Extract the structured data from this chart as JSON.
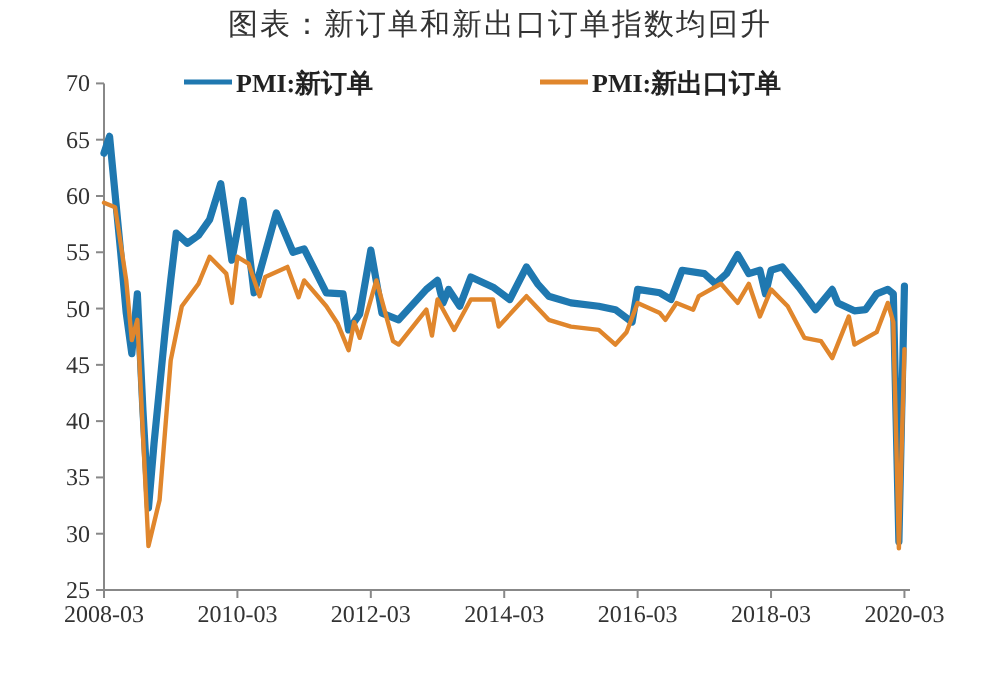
{
  "chart_data": {
    "type": "line",
    "title": "图表：新订单和新出口订单指数均回升",
    "xlim": [
      "2008-03",
      "2020-04"
    ],
    "xticks": [
      "2008-03",
      "2010-03",
      "2012-03",
      "2014-03",
      "2016-03",
      "2018-03",
      "2020-03"
    ],
    "ylim": [
      25,
      70
    ],
    "yticks": [
      25,
      30,
      35,
      40,
      45,
      50,
      55,
      60,
      65,
      70
    ],
    "grid": false,
    "legend": "top",
    "marker": "none",
    "line_style": "solid",
    "series": [
      {
        "name": "PMI:新订单",
        "color": "#1f78b0",
        "x": [
          "2008-03",
          "2008-04",
          "2008-06",
          "2008-07",
          "2008-08",
          "2008-09",
          "2008-10",
          "2008-11",
          "2008-12",
          "2009-01",
          "2009-02",
          "2009-03",
          "2009-04",
          "2009-06",
          "2009-08",
          "2009-10",
          "2009-12",
          "2010-02",
          "2010-04",
          "2010-06",
          "2010-10",
          "2011-01",
          "2011-03",
          "2011-07",
          "2011-10",
          "2011-11",
          "2012-01",
          "2012-03",
          "2012-05",
          "2012-08",
          "2013-01",
          "2013-03",
          "2013-04",
          "2013-05",
          "2013-07",
          "2013-09",
          "2014-01",
          "2014-04",
          "2014-07",
          "2014-09",
          "2014-11",
          "2015-03",
          "2015-08",
          "2015-11",
          "2016-02",
          "2016-03",
          "2016-07",
          "2016-09",
          "2016-11",
          "2017-03",
          "2017-05",
          "2017-07",
          "2017-09",
          "2017-11",
          "2018-01",
          "2018-02",
          "2018-03",
          "2018-05",
          "2018-08",
          "2018-11",
          "2019-02",
          "2019-03",
          "2019-06",
          "2019-08",
          "2019-10",
          "2019-12",
          "2020-01",
          "2020-02",
          "2020-03"
        ],
        "values": [
          63.8,
          65.3,
          55,
          49.6,
          46,
          51.3,
          41,
          32.3,
          38,
          43,
          48,
          52.5,
          56.7,
          55.8,
          56.5,
          57.9,
          61.1,
          54.3,
          59.6,
          51.4,
          58.5,
          55,
          55.3,
          51.4,
          51.3,
          48.1,
          49.5,
          55.2,
          49.6,
          49,
          51.7,
          52.5,
          50.5,
          51.7,
          50.2,
          52.8,
          51.9,
          50.8,
          53.7,
          52.2,
          51.1,
          50.5,
          50.2,
          49.9,
          48.8,
          51.7,
          51.4,
          50.8,
          53.4,
          53.1,
          52.2,
          53.1,
          54.8,
          53.1,
          53.4,
          51.3,
          53.4,
          53.7,
          51.9,
          49.9,
          51.7,
          50.5,
          49.8,
          49.9,
          51.3,
          51.7,
          51.3,
          29.3,
          52
        ]
      },
      {
        "name": "PMI:新出口订单",
        "color": "#e0862c",
        "x": [
          "2008-03",
          "2008-05",
          "2008-07",
          "2008-08",
          "2008-09",
          "2008-11",
          "2009-01",
          "2009-03",
          "2009-05",
          "2009-08",
          "2009-10",
          "2010-01",
          "2010-02",
          "2010-03",
          "2010-05",
          "2010-07",
          "2010-08",
          "2010-12",
          "2011-02",
          "2011-03",
          "2011-07",
          "2011-09",
          "2011-11",
          "2011-12",
          "2012-01",
          "2012-04",
          "2012-07",
          "2012-08",
          "2013-01",
          "2013-02",
          "2013-03",
          "2013-06",
          "2013-09",
          "2014-01",
          "2014-02",
          "2014-07",
          "2014-11",
          "2015-03",
          "2015-08",
          "2015-11",
          "2016-01",
          "2016-03",
          "2016-07",
          "2016-08",
          "2016-10",
          "2017-01",
          "2017-02",
          "2017-06",
          "2017-09",
          "2017-11",
          "2018-01",
          "2018-03",
          "2018-06",
          "2018-09",
          "2018-12",
          "2019-02",
          "2019-05",
          "2019-06",
          "2019-10",
          "2019-12",
          "2020-01",
          "2020-02",
          "2020-03"
        ],
        "values": [
          59.4,
          59,
          52.5,
          47.2,
          49,
          28.9,
          33,
          45.4,
          50.2,
          52.2,
          54.6,
          53.1,
          50.5,
          54.6,
          54,
          51.1,
          52.8,
          53.7,
          51,
          52.5,
          50.2,
          48.7,
          46.3,
          48.8,
          47.4,
          52.5,
          47.1,
          46.8,
          49.9,
          47.6,
          50.8,
          48.1,
          50.8,
          50.8,
          48.4,
          51.1,
          49,
          48.4,
          48.1,
          46.8,
          47.9,
          50.5,
          49.6,
          49,
          50.5,
          49.9,
          51.1,
          52.2,
          50.5,
          52.2,
          49.3,
          51.7,
          50.2,
          47.4,
          47.1,
          45.6,
          49.3,
          46.8,
          47.9,
          50.5,
          48.8,
          28.7,
          46.4
        ]
      }
    ]
  }
}
